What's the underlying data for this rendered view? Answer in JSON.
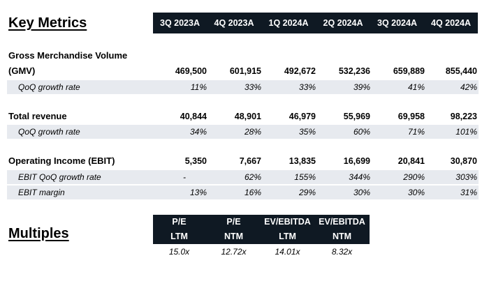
{
  "key_metrics": {
    "title": "Key Metrics",
    "periods": [
      "3Q 2023A",
      "4Q 2023A",
      "1Q 2024A",
      "2Q 2024A",
      "3Q 2024A",
      "4Q 2024A"
    ],
    "gmv": {
      "label_line1": "Gross Merchandise Volume",
      "label_line2": "(GMV)",
      "values": [
        "469,500",
        "601,915",
        "492,672",
        "532,236",
        "659,889",
        "855,440"
      ],
      "growth_label": "QoQ growth rate",
      "growth": [
        "11%",
        "33%",
        "33%",
        "39%",
        "41%",
        "42%"
      ]
    },
    "revenue": {
      "label": "Total revenue",
      "values": [
        "40,844",
        "48,901",
        "46,979",
        "55,969",
        "69,958",
        "98,223"
      ],
      "growth_label": "QoQ growth rate",
      "growth": [
        "34%",
        "28%",
        "35%",
        "60%",
        "71%",
        "101%"
      ]
    },
    "ebit": {
      "label": "Operating Income (EBIT)",
      "values": [
        "5,350",
        "7,667",
        "13,835",
        "16,699",
        "20,841",
        "30,870"
      ],
      "growth_label": "EBIT QoQ growth rate",
      "growth": [
        "-",
        "62%",
        "155%",
        "344%",
        "290%",
        "303%"
      ],
      "margin_label": "EBIT margin",
      "margin": [
        "13%",
        "16%",
        "29%",
        "30%",
        "30%",
        "31%"
      ]
    }
  },
  "multiples": {
    "title": "Multiples",
    "headers": [
      {
        "line1": "P/E",
        "line2": "LTM"
      },
      {
        "line1": "P/E",
        "line2": "NTM"
      },
      {
        "line1": "EV/EBITDA",
        "line2": "LTM"
      },
      {
        "line1": "EV/EBITDA",
        "line2": "NTM"
      }
    ],
    "values": [
      "15.0x",
      "12.72x",
      "14.01x",
      "8.32x"
    ]
  },
  "colors": {
    "header_bg": "#0f1923",
    "row_shade": "#e7eaef"
  }
}
